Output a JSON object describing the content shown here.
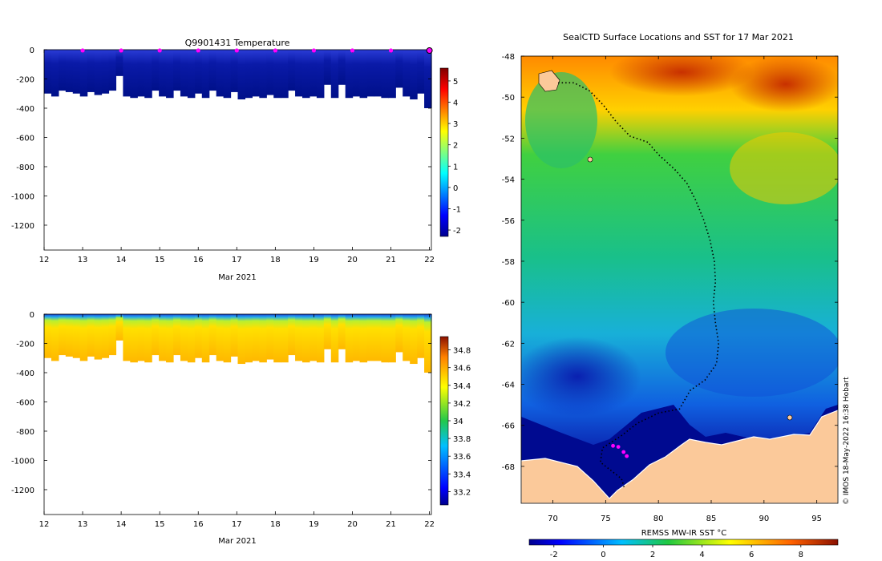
{
  "colors": {
    "axis": "#000000",
    "marker": "#ff00ff",
    "land": "#fbc99a",
    "background": "#ffffff"
  },
  "icons": {
    "position-marker": "magenta-star"
  },
  "chart_data": [
    {
      "id": "temp_section",
      "type": "heatmap",
      "title": "Q9901431  Temperature",
      "xlabel": "Mar 2021",
      "ylabel": "",
      "xlim": [
        12,
        22.05
      ],
      "ylim": [
        -1370,
        0
      ],
      "x_ticks": [
        "12",
        "13",
        "14",
        "15",
        "16",
        "17",
        "18",
        "19",
        "20",
        "21",
        "22"
      ],
      "y_ticks": [
        "0",
        "-200",
        "-400",
        "-600",
        "-800",
        "-1000",
        "-1200"
      ],
      "y_tick_values": [
        0,
        -200,
        -400,
        -600,
        -800,
        -1000,
        -1200
      ],
      "colorbar": {
        "min": -2.3,
        "max": 5.6,
        "ticks": [
          "5",
          "4",
          "3",
          "2",
          "1",
          "0",
          "-1",
          "-2"
        ],
        "tick_values": [
          5,
          4,
          3,
          2,
          1,
          0,
          -1,
          -2
        ],
        "colormap": "jet"
      },
      "profile_depths_m": [
        300,
        320,
        280,
        290,
        300,
        320,
        290,
        310,
        300,
        280,
        180,
        320,
        330,
        320,
        330,
        280,
        320,
        330,
        280,
        320,
        330,
        300,
        330,
        280,
        320,
        330,
        290,
        340,
        330,
        320,
        330,
        310,
        330,
        330,
        280,
        320,
        330,
        320,
        330,
        240,
        330,
        240,
        330,
        320,
        330,
        320,
        320,
        330,
        330,
        260,
        320,
        340,
        300,
        400
      ],
      "value_range": [
        -1.6,
        0.2
      ],
      "surface_markers_x": [
        13,
        14,
        15,
        16,
        17,
        18,
        19,
        20,
        21,
        22
      ]
    },
    {
      "id": "salt_section",
      "type": "heatmap",
      "title": "",
      "xlabel": "Mar 2021",
      "ylabel": "",
      "xlim": [
        12,
        22.05
      ],
      "ylim": [
        -1370,
        0
      ],
      "x_ticks": [
        "12",
        "13",
        "14",
        "15",
        "16",
        "17",
        "18",
        "19",
        "20",
        "21",
        "22"
      ],
      "y_ticks": [
        "0",
        "-200",
        "-400",
        "-600",
        "-800",
        "-1000",
        "-1200"
      ],
      "y_tick_values": [
        0,
        -200,
        -400,
        -600,
        -800,
        -1000,
        -1200
      ],
      "colorbar": {
        "min": 33.05,
        "max": 34.95,
        "ticks": [
          "34.8",
          "34.6",
          "34.4",
          "34.2",
          "34",
          "33.8",
          "33.6",
          "33.4",
          "33.2"
        ],
        "tick_values": [
          34.8,
          34.6,
          34.4,
          34.2,
          34,
          33.8,
          33.6,
          33.4,
          33.2
        ],
        "colormap": "jet"
      },
      "value_range": [
        33.9,
        34.6
      ]
    },
    {
      "id": "sst_map",
      "type": "heatmap",
      "title": "SealCTD Surface Locations and SST for 17 Mar 2021",
      "xlabel": "REMSS MW-IR SST °C",
      "ylabel": "",
      "xlim": [
        67,
        97
      ],
      "ylim": [
        -69.8,
        -48
      ],
      "x_ticks": [
        "70",
        "75",
        "80",
        "85",
        "90",
        "95"
      ],
      "x_tick_values": [
        70,
        75,
        80,
        85,
        90,
        95
      ],
      "y_ticks": [
        "-48",
        "-50",
        "-52",
        "-54",
        "-56",
        "-58",
        "-60",
        "-62",
        "-64",
        "-66",
        "-68"
      ],
      "y_tick_values": [
        -48,
        -50,
        -52,
        -54,
        -56,
        -58,
        -60,
        -62,
        -64,
        -66,
        -68
      ],
      "colorbar": {
        "min": -3,
        "max": 9.5,
        "ticks": [
          "-2",
          "0",
          "2",
          "4",
          "6",
          "8"
        ],
        "tick_values": [
          -2,
          0,
          2,
          4,
          6,
          8
        ],
        "colormap": "jet"
      },
      "track": [
        [
          70.5,
          -49.3
        ],
        [
          72,
          -49.3
        ],
        [
          73.5,
          -49.7
        ],
        [
          74.8,
          -50.4
        ],
        [
          76,
          -51.2
        ],
        [
          77.3,
          -51.9
        ],
        [
          79,
          -52.2
        ],
        [
          80,
          -52.8
        ],
        [
          81.5,
          -53.5
        ],
        [
          82.7,
          -54.2
        ],
        [
          83.5,
          -55
        ],
        [
          84.3,
          -56
        ],
        [
          84.9,
          -57
        ],
        [
          85.3,
          -58
        ],
        [
          85.4,
          -59
        ],
        [
          85.2,
          -60
        ],
        [
          85.4,
          -61
        ],
        [
          85.7,
          -62
        ],
        [
          85.5,
          -63
        ],
        [
          84.4,
          -63.8
        ],
        [
          83,
          -64.3
        ],
        [
          82,
          -65.2
        ],
        [
          80,
          -65.4
        ],
        [
          78,
          -65.9
        ],
        [
          76.5,
          -66.5
        ],
        [
          74.7,
          -67.1
        ],
        [
          74.5,
          -67.8
        ],
        [
          75.5,
          -68.2
        ],
        [
          76.5,
          -68.6
        ],
        [
          76.8,
          -69.1
        ]
      ],
      "recent_positions": [
        [
          75.7,
          -67.0
        ],
        [
          76.2,
          -67.05
        ],
        [
          76.7,
          -67.3
        ],
        [
          77.0,
          -67.5
        ]
      ],
      "credit": "© IMOS 18-May-2022 16:38 Hobart"
    }
  ]
}
